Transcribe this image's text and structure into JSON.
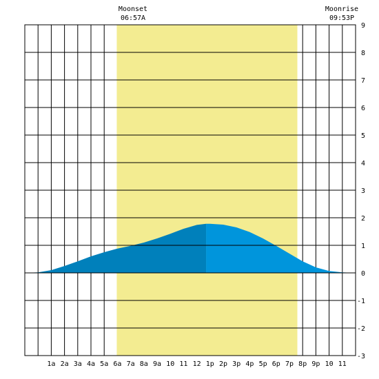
{
  "chart_data": {
    "type": "area",
    "title": "",
    "xlabel": "",
    "ylabel": "",
    "x_range_hours": [
      -1,
      24
    ],
    "ylim": [
      -3,
      9
    ],
    "grid": true,
    "x_tick_labels": [
      "1a",
      "2a",
      "3a",
      "4a",
      "5a",
      "6a",
      "7a",
      "8a",
      "9a",
      "10",
      "11",
      "12",
      "1p",
      "2p",
      "3p",
      "4p",
      "5p",
      "6p",
      "7p",
      "8p",
      "9p",
      "10",
      "11"
    ],
    "y_tick_labels": [
      "9",
      "8",
      "7",
      "6",
      "5",
      "4",
      "3",
      "2",
      "1",
      "0",
      "-1",
      "-2",
      "-3"
    ],
    "daylight": {
      "start_hour": 5.95,
      "end_hour": 19.6
    },
    "high_tide_hour": 12.7,
    "annotations": {
      "moonset": {
        "label": "Moonset",
        "time": "06:57A"
      },
      "moonrise": {
        "label": "Moonrise",
        "time": "09:53P"
      }
    },
    "series": [
      {
        "x": [
          -1,
          0,
          1,
          2,
          3,
          4,
          5,
          6,
          7,
          8,
          9,
          10,
          11,
          12,
          12.7,
          13,
          14,
          15,
          16,
          17,
          18,
          19,
          20,
          21,
          22,
          23,
          24
        ],
        "values": [
          0.0,
          0.02,
          0.1,
          0.25,
          0.42,
          0.6,
          0.75,
          0.88,
          0.98,
          1.1,
          1.25,
          1.42,
          1.6,
          1.74,
          1.78,
          1.78,
          1.75,
          1.65,
          1.48,
          1.25,
          0.98,
          0.7,
          0.42,
          0.2,
          0.07,
          0.02,
          0.0
        ]
      }
    ],
    "colors": {
      "daylight": "#f3ec91",
      "tide_before_high": "#0080bb",
      "tide_after_high": "#0095dc",
      "grid": "#000000"
    }
  }
}
